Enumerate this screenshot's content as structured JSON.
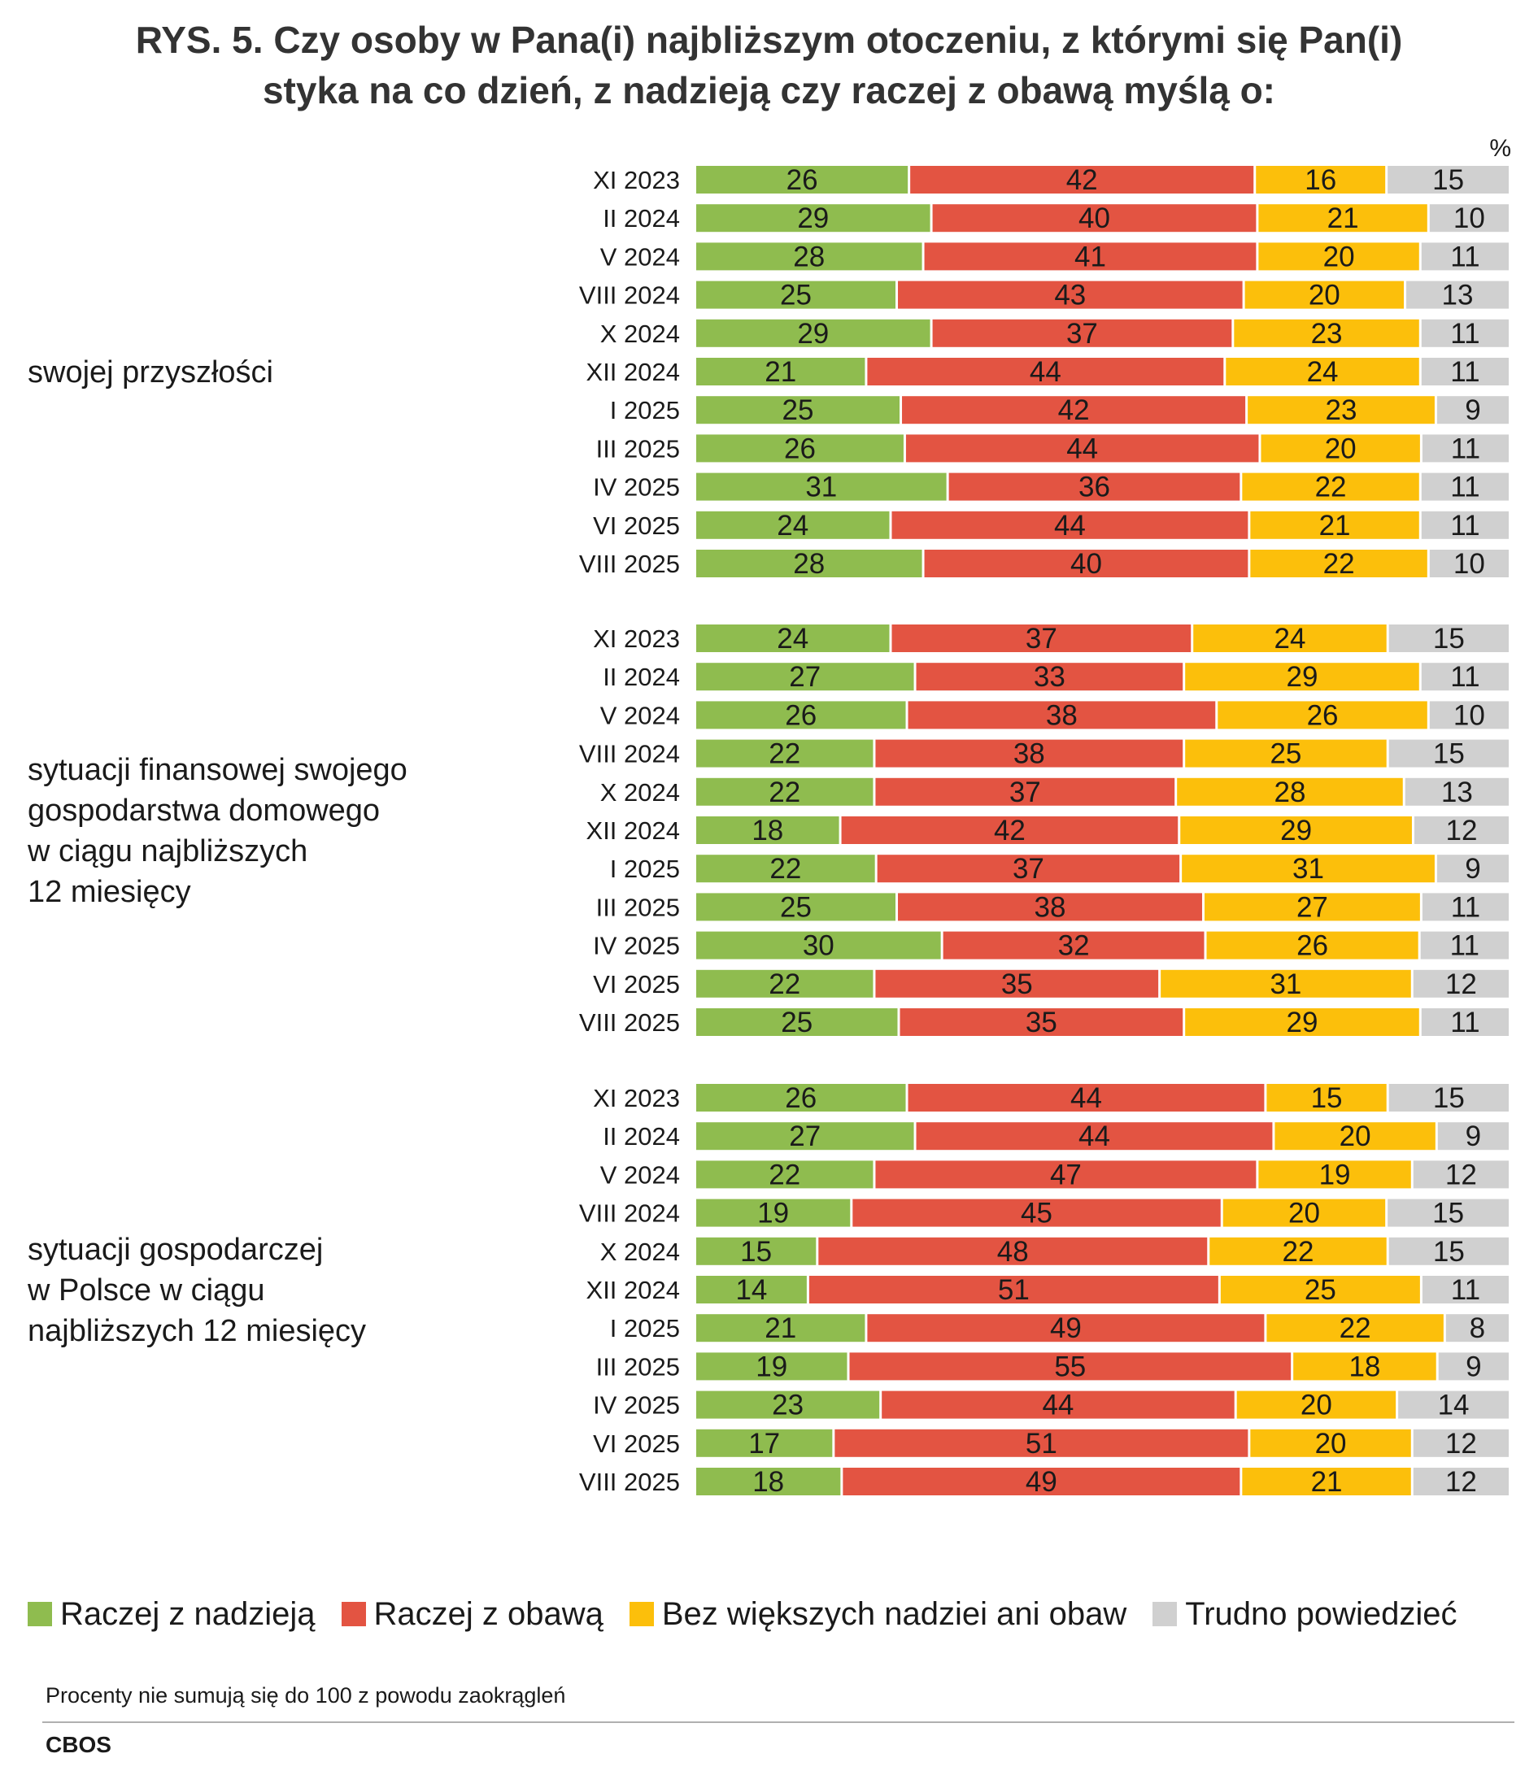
{
  "title": {
    "line1": "RYS. 5. Czy osoby w Pana(i) najbliższym otoczeniu, z którymi się Pan(i)",
    "line2": "styka na co dzień, z nadzieją czy raczej z obawą myślą o:"
  },
  "unit": "%",
  "note": "Procenty nie sumują się do 100 z powodu zaokrągleń",
  "source": "CBOS",
  "chart_data": {
    "type": "bar",
    "orientation": "horizontal",
    "stacked": true,
    "title": "RYS. 5. Czy osoby w Pana(i) najbliższym otoczeniu, z którymi się Pan(i) styka na co dzień, z nadzieją czy raczej z obawą myślą o:",
    "unit": "%",
    "legend_position": "bottom",
    "series": [
      {
        "name": "Raczej z nadzieją",
        "color": "#8fbc4f"
      },
      {
        "name": "Raczej z obawą",
        "color": "#e35442"
      },
      {
        "name": "Bez większych nadziei ani obaw",
        "color": "#fcbf0b"
      },
      {
        "name": "Trudno powiedzieć",
        "color": "#d0d0d0"
      }
    ],
    "groups": [
      {
        "label_lines": [
          "swojej przyszłości"
        ],
        "categories": [
          "XI 2023",
          "II 2024",
          "V 2024",
          "VIII 2024",
          "X 2024",
          "XII 2024",
          "I 2025",
          "III 2025",
          "IV 2025",
          "VI 2025",
          "VIII 2025"
        ],
        "values": [
          [
            26,
            42,
            16,
            15
          ],
          [
            29,
            40,
            21,
            10
          ],
          [
            28,
            41,
            20,
            11
          ],
          [
            25,
            43,
            20,
            13
          ],
          [
            29,
            37,
            23,
            11
          ],
          [
            21,
            44,
            24,
            11
          ],
          [
            25,
            42,
            23,
            9
          ],
          [
            26,
            44,
            20,
            11
          ],
          [
            31,
            36,
            22,
            11
          ],
          [
            24,
            44,
            21,
            11
          ],
          [
            28,
            40,
            22,
            10
          ]
        ]
      },
      {
        "label_lines": [
          "sytuacji finansowej swojego",
          "gospodarstwa domowego",
          "w ciągu najbliższych",
          "12 miesięcy"
        ],
        "categories": [
          "XI 2023",
          "II 2024",
          "V 2024",
          "VIII 2024",
          "X 2024",
          "XII 2024",
          "I 2025",
          "III 2025",
          "IV 2025",
          "VI 2025",
          "VIII 2025"
        ],
        "values": [
          [
            24,
            37,
            24,
            15
          ],
          [
            27,
            33,
            29,
            11
          ],
          [
            26,
            38,
            26,
            10
          ],
          [
            22,
            38,
            25,
            15
          ],
          [
            22,
            37,
            28,
            13
          ],
          [
            18,
            42,
            29,
            12
          ],
          [
            22,
            37,
            31,
            9
          ],
          [
            25,
            38,
            27,
            11
          ],
          [
            30,
            32,
            26,
            11
          ],
          [
            22,
            35,
            31,
            12
          ],
          [
            25,
            35,
            29,
            11
          ]
        ]
      },
      {
        "label_lines": [
          "sytuacji gospodarczej",
          "w Polsce w ciągu",
          "najbliższych 12 miesięcy"
        ],
        "categories": [
          "XI 2023",
          "II 2024",
          "V 2024",
          "VIII 2024",
          "X 2024",
          "XII 2024",
          "I 2025",
          "III 2025",
          "IV 2025",
          "VI 2025",
          "VIII 2025"
        ],
        "values": [
          [
            26,
            44,
            15,
            15
          ],
          [
            27,
            44,
            20,
            9
          ],
          [
            22,
            47,
            19,
            12
          ],
          [
            19,
            45,
            20,
            15
          ],
          [
            15,
            48,
            22,
            15
          ],
          [
            14,
            51,
            25,
            11
          ],
          [
            21,
            49,
            22,
            8
          ],
          [
            19,
            55,
            18,
            9
          ],
          [
            23,
            44,
            20,
            14
          ],
          [
            17,
            51,
            20,
            12
          ],
          [
            18,
            49,
            21,
            12
          ]
        ]
      }
    ]
  }
}
